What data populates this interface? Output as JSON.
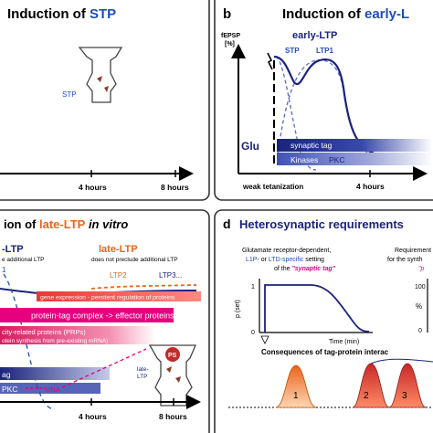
{
  "panel_a": {
    "title_prefix": "Induction of ",
    "title_highlight": "STP",
    "stp_label": "STP",
    "tick_4h": "4 hours",
    "tick_8h": "8 hours"
  },
  "panel_b": {
    "letter": "b",
    "title_prefix": "Induction of ",
    "title_highlight": "early-L",
    "y_label_1": "fEPSP",
    "y_label_2": "[%]",
    "curve_title": "early-LTP",
    "stp_label": "STP",
    "ltp1_label": "LTP1",
    "glu_label": "Glu",
    "tag_bar_label": "synaptic tag",
    "kinases_label": "Kinases",
    "pkc_label": "PKC",
    "x_label": "weak tetanization",
    "tick_4h": "4 hours"
  },
  "panel_c": {
    "title_prefix": "ion of ",
    "title_highlight": "late-LTP",
    "title_suffix": " in vitro",
    "left_header": "-LTP",
    "left_sub": "e additional LTP",
    "right_header": "late-LTP",
    "right_sub": "does not preclude additional LTP",
    "left_marker": "1",
    "ltp2": "LTP2",
    "ltp3": "LTP3...",
    "gene_bar": "gene expression - persitent regulation of proteins",
    "complex_bar": "protein-tag complex   ->   effector proteins",
    "prp_line1": "city-related proteins (PRPs)",
    "prp_line2": "otein synthesis from pre-existing mRNA)",
    "tag_text": "ag",
    "pkc_text": "PKC",
    "rna_text": "RNA",
    "ps_label": "PS",
    "late_label_1": "late-",
    "late_label_2": "LTP",
    "tick_4h": "4 hours",
    "tick_8h": "8 hours"
  },
  "panel_d": {
    "letter": "d",
    "title": "Heterosynaptic requirements",
    "left_cap_1": "Glutamate receptor-dependent,",
    "left_cap_2_a": "L1P",
    "left_cap_2_b": "- or ",
    "left_cap_2_c": "LTD-specific",
    "left_cap_2_d": " setting",
    "left_cap_3_a": "of the ",
    "left_cap_3_b": "\"synaptic tag\"",
    "right_cap_1": "Requirement",
    "right_cap_2": "for the synth",
    "right_cap_3": "\"p",
    "y_label": "p (set)",
    "y_tick_1": "1",
    "y_tick_0": "0",
    "x_label": "Time (min)",
    "right_y_100": "100",
    "right_y_pct": "%",
    "right_y_0": "0",
    "consequences": "Consequences of tag-protein interac",
    "peak_1": "1",
    "peak_2": "2",
    "peak_3": "3"
  },
  "colors": {
    "accent_blue": "#1f4fb4",
    "accent_orange": "#e8641e",
    "magenta": "#e6007e",
    "navy": "#1a237e",
    "peak_orange": "#f4a460",
    "peak_red": "#d4301a"
  }
}
